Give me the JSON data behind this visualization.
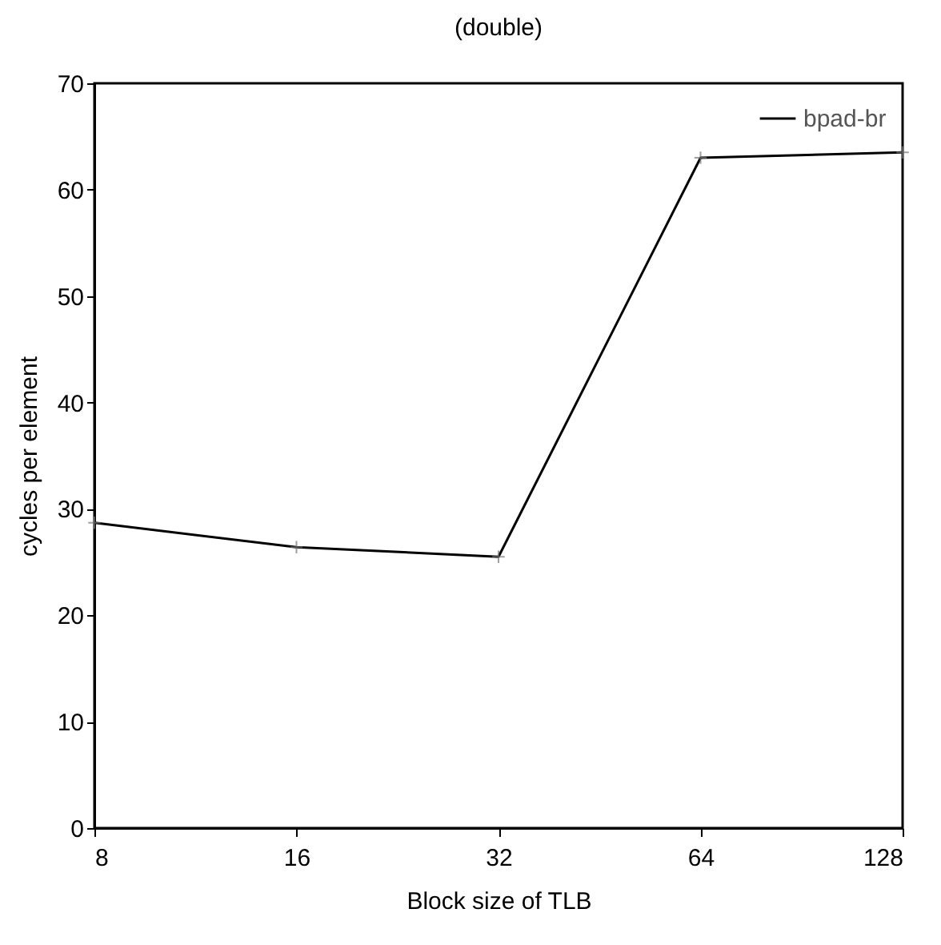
{
  "chart_data": {
    "type": "line",
    "title": "(double)",
    "xlabel": "Block size of TLB",
    "ylabel": "cycles per element",
    "x": [
      8,
      16,
      32,
      64,
      128
    ],
    "series": [
      {
        "name": "bpad-br",
        "color": "#000000",
        "values": [
          28.7,
          26.4,
          25.5,
          63.0,
          63.5
        ]
      }
    ],
    "log": "x",
    "xlim": [
      8,
      128
    ],
    "xticks": [
      8,
      16,
      32,
      64,
      128
    ],
    "ylim": [
      0,
      70
    ],
    "yticks": [
      0,
      10,
      20,
      30,
      40,
      50,
      60,
      70
    ],
    "legend": "top right",
    "marker": "cross",
    "line_style": "solid",
    "grid": false
  }
}
